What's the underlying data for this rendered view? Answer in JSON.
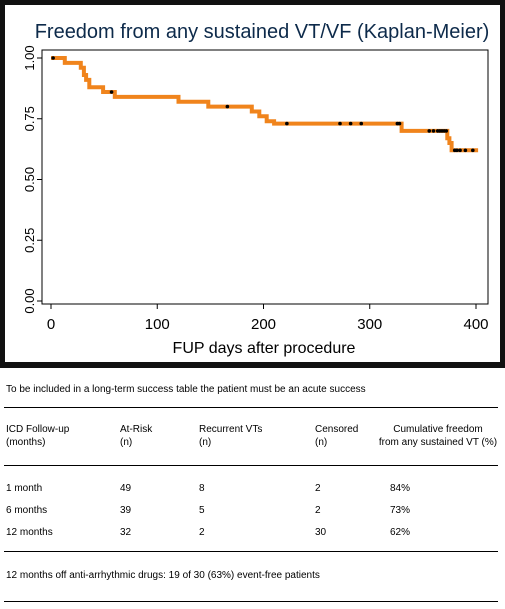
{
  "chart_data": {
    "type": "line",
    "title": "Freedom from any sustained VT/VF (Kaplan-Meier)",
    "xlabel": "FUP days after procedure",
    "ylabel": "",
    "xlim": [
      0,
      405
    ],
    "ylim": [
      0,
      1.0
    ],
    "x_ticks": [
      0,
      100,
      200,
      300,
      400
    ],
    "x_tick_labels": [
      "0",
      "100",
      "200",
      "300",
      "400"
    ],
    "y_ticks": [
      0.0,
      0.25,
      0.5,
      0.75,
      1.0
    ],
    "y_tick_labels": [
      "0.00",
      "0.25",
      "0.50",
      "0.75",
      "1.00"
    ],
    "grid": false,
    "series": [
      {
        "color": "#f0841c",
        "step_points": [
          [
            0,
            1.0
          ],
          [
            13,
            1.0
          ],
          [
            13,
            0.98
          ],
          [
            28,
            0.98
          ],
          [
            28,
            0.96
          ],
          [
            31,
            0.96
          ],
          [
            31,
            0.93
          ],
          [
            33,
            0.93
          ],
          [
            33,
            0.91
          ],
          [
            36,
            0.91
          ],
          [
            36,
            0.88
          ],
          [
            49,
            0.88
          ],
          [
            49,
            0.86
          ],
          [
            60,
            0.86
          ],
          [
            60,
            0.84
          ],
          [
            120,
            0.84
          ],
          [
            120,
            0.82
          ],
          [
            148,
            0.82
          ],
          [
            148,
            0.8
          ],
          [
            189,
            0.8
          ],
          [
            189,
            0.78
          ],
          [
            196,
            0.78
          ],
          [
            196,
            0.76
          ],
          [
            203,
            0.76
          ],
          [
            203,
            0.74
          ],
          [
            210,
            0.74
          ],
          [
            210,
            0.73
          ],
          [
            330,
            0.73
          ],
          [
            330,
            0.7
          ],
          [
            373,
            0.7
          ],
          [
            373,
            0.67
          ],
          [
            375,
            0.67
          ],
          [
            375,
            0.65
          ],
          [
            377,
            0.65
          ],
          [
            377,
            0.62
          ],
          [
            402,
            0.62
          ]
        ],
        "censored": [
          [
            2,
            1.0
          ],
          [
            57,
            0.86
          ],
          [
            166,
            0.8
          ],
          [
            222,
            0.73
          ],
          [
            272,
            0.73
          ],
          [
            282,
            0.73
          ],
          [
            292,
            0.73
          ],
          [
            326,
            0.73
          ],
          [
            328,
            0.73
          ],
          [
            356,
            0.7
          ],
          [
            360,
            0.7
          ],
          [
            364,
            0.7
          ],
          [
            366,
            0.7
          ],
          [
            368,
            0.7
          ],
          [
            370,
            0.7
          ],
          [
            372,
            0.7
          ],
          [
            380,
            0.62
          ],
          [
            382,
            0.62
          ],
          [
            385,
            0.62
          ],
          [
            390,
            0.62
          ],
          [
            397,
            0.62
          ]
        ]
      }
    ]
  },
  "colors": {
    "frame": "#111111",
    "frame_bg": "#ffffff",
    "curve": "#f0841c",
    "marker": "#000000",
    "title": "#0d2a4a"
  },
  "notes": {
    "inclusion": "To be included in a long-term success table the patient must be an acute success",
    "off_drugs": "12 months off anti-arrhythmic drugs:  19 of 30 (63%)  event-free patients"
  },
  "table": {
    "headers": [
      [
        "ICD Follow-up",
        "(months)"
      ],
      [
        "At-Risk",
        "(n)"
      ],
      [
        "Recurrent VTs",
        "(n)"
      ],
      [
        "Censored",
        "(n)"
      ],
      [
        "Cumulative freedom",
        "from any sustained VT (%)"
      ]
    ],
    "rows": [
      [
        "1 month",
        "49",
        "8",
        "2",
        "84%"
      ],
      [
        "6 months",
        "39",
        "5",
        "2",
        "73%"
      ],
      [
        "12 months",
        "32",
        "2",
        "30",
        "62%"
      ]
    ]
  }
}
